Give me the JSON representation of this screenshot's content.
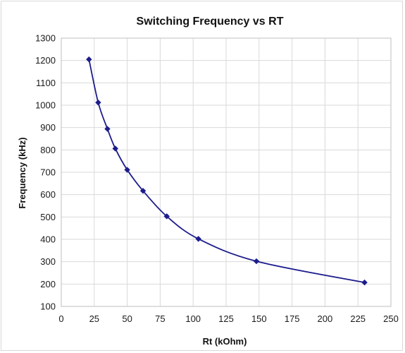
{
  "chart_data": {
    "type": "line",
    "title": "Switching Frequency vs RT",
    "xlabel": "Rt (kOhm)",
    "ylabel": "Frequency (kHz)",
    "xlim": [
      0,
      250
    ],
    "ylim": [
      100,
      1300
    ],
    "xticks": [
      0,
      25,
      50,
      75,
      100,
      125,
      150,
      175,
      200,
      225,
      250
    ],
    "yticks": [
      100,
      200,
      300,
      400,
      500,
      600,
      700,
      800,
      900,
      1000,
      1100,
      1200,
      1300
    ],
    "grid": true,
    "legend": "none",
    "marker": "diamond",
    "smooth": true,
    "series": [
      {
        "color": "#1c1c8c",
        "x": [
          21,
          28,
          35,
          41,
          50,
          62,
          80,
          104,
          148,
          230
        ],
        "y": [
          1205,
          1012,
          894,
          806,
          711,
          617,
          503,
          402,
          302,
          207
        ]
      }
    ]
  }
}
